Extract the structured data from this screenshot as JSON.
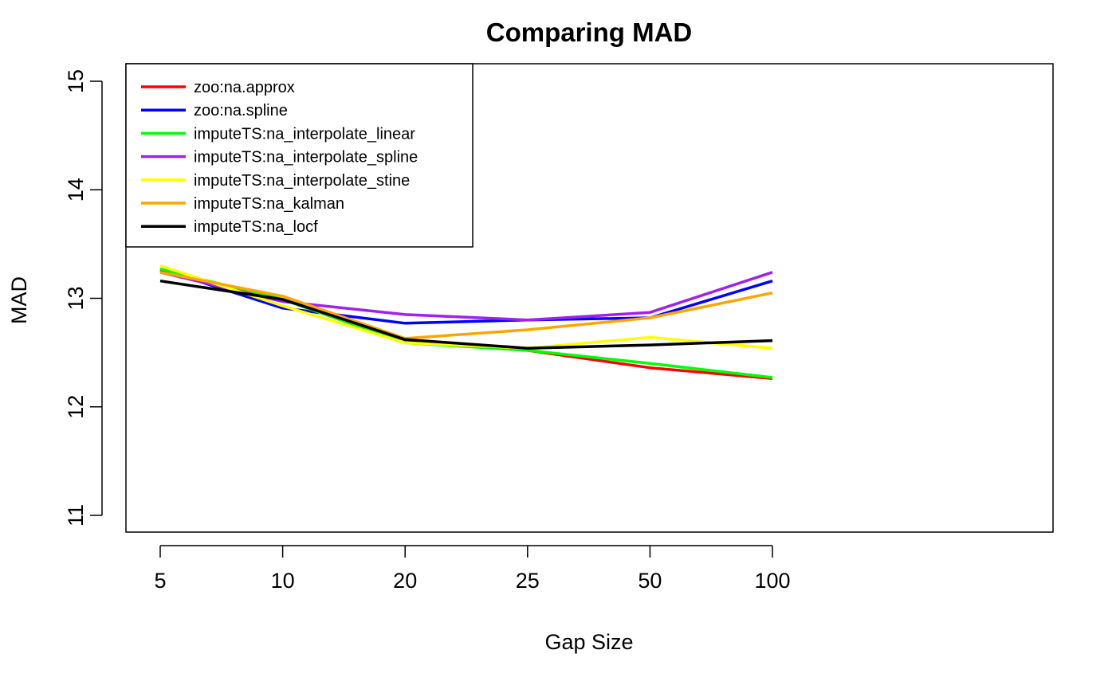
{
  "chart_data": {
    "type": "line",
    "title": "Comparing MAD",
    "xlabel": "Gap Size",
    "ylabel": "MAD",
    "categories": [
      "5",
      "10",
      "20",
      "25",
      "50",
      "100"
    ],
    "ylim": [
      11,
      15
    ],
    "y_ticks": [
      "11",
      "12",
      "13",
      "14",
      "15"
    ],
    "grid": false,
    "legend_position": "top-left",
    "series": [
      {
        "name": "zoo:na.approx",
        "color": "#ff0000",
        "values": [
          13.26,
          12.99,
          12.6,
          12.52,
          12.36,
          12.26
        ]
      },
      {
        "name": "zoo:na.spline",
        "color": "#0000ff",
        "values": [
          13.27,
          12.91,
          12.77,
          12.8,
          12.82,
          13.16
        ]
      },
      {
        "name": "imputeTS:na_interpolate_linear",
        "color": "#00ff00",
        "values": [
          13.27,
          12.99,
          12.59,
          12.52,
          12.4,
          12.27
        ]
      },
      {
        "name": "imputeTS:na_interpolate_spline",
        "color": "#a020f0",
        "values": [
          13.24,
          12.97,
          12.85,
          12.8,
          12.87,
          13.24
        ]
      },
      {
        "name": "imputeTS:na_interpolate_stine",
        "color": "#ffff00",
        "values": [
          13.3,
          12.93,
          12.59,
          12.54,
          12.64,
          12.54
        ]
      },
      {
        "name": "imputeTS:na_kalman",
        "color": "#ffa500",
        "values": [
          13.24,
          13.02,
          12.63,
          12.71,
          12.82,
          13.05
        ]
      },
      {
        "name": "imputeTS:na_locf",
        "color": "#000000",
        "values": [
          13.16,
          12.99,
          12.62,
          12.54,
          12.57,
          12.61
        ]
      }
    ]
  }
}
